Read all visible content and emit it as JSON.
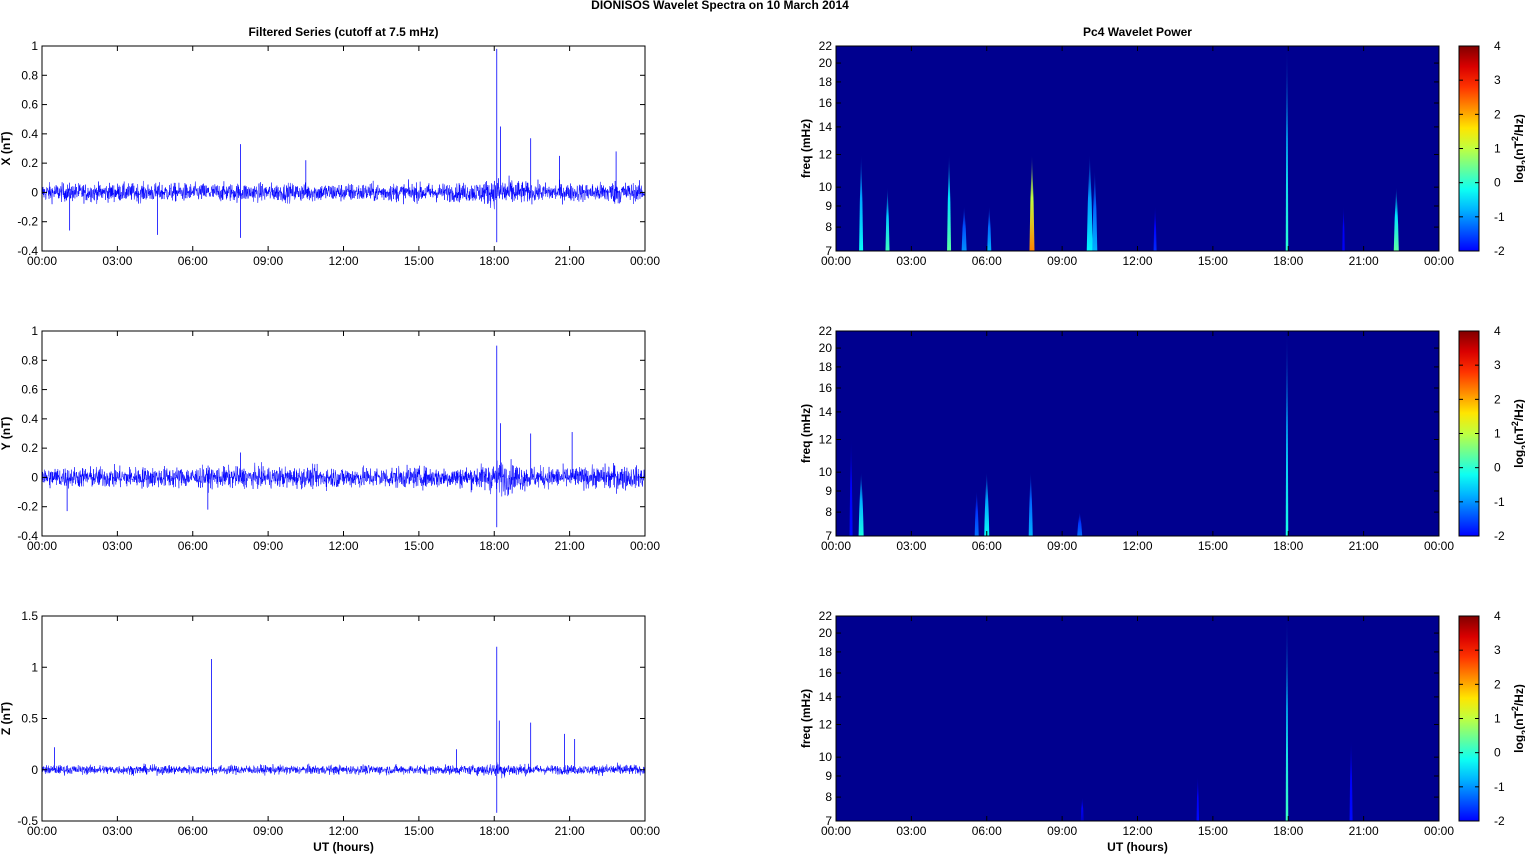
{
  "figure_title": "DIONISOS Wavelet Spectra on 10 March     2014",
  "colors": {
    "trace": "#0000ff",
    "background_power": "#00008f",
    "frame": "#000000"
  },
  "chart_data": [
    {
      "type": "line",
      "panel": "X",
      "title": "Filtered Series (cutoff at 7.5 mHz)",
      "xlabel": "",
      "ylabel": "X (nT)",
      "x_ticks": [
        "00:00",
        "03:00",
        "06:00",
        "09:00",
        "12:00",
        "15:00",
        "18:00",
        "21:00",
        "00:00"
      ],
      "xlim": [
        0,
        24
      ],
      "ylim": [
        -0.4,
        1
      ],
      "y_ticks": [
        -0.4,
        -0.2,
        0,
        0.2,
        0.4,
        0.6,
        0.8,
        1
      ],
      "y_tick_labels": [
        "-0.4",
        "-0.2",
        "0",
        "0.2",
        "0.4",
        "0.6",
        "0.8",
        "1"
      ],
      "noise_amplitude": 0.07,
      "spikes": [
        {
          "t": 18.1,
          "v": 0.98
        },
        {
          "t": 18.25,
          "v": 0.45
        },
        {
          "t": 18.1,
          "v": -0.34
        },
        {
          "t": 7.9,
          "v": 0.33
        },
        {
          "t": 7.9,
          "v": -0.31
        },
        {
          "t": 19.45,
          "v": 0.37
        },
        {
          "t": 20.6,
          "v": 0.25
        },
        {
          "t": 22.85,
          "v": 0.28
        },
        {
          "t": 4.6,
          "v": -0.29
        },
        {
          "t": 10.5,
          "v": 0.22
        },
        {
          "t": 1.1,
          "v": -0.26
        }
      ]
    },
    {
      "type": "line",
      "panel": "Y",
      "title": "",
      "xlabel": "",
      "ylabel": "Y (nT)",
      "x_ticks": [
        "00:00",
        "03:00",
        "06:00",
        "09:00",
        "12:00",
        "15:00",
        "18:00",
        "21:00",
        "00:00"
      ],
      "xlim": [
        0,
        24
      ],
      "ylim": [
        -0.4,
        1
      ],
      "y_ticks": [
        -0.4,
        -0.2,
        0,
        0.2,
        0.4,
        0.6,
        0.8,
        1
      ],
      "y_tick_labels": [
        "-0.4",
        "-0.2",
        "0",
        "0.2",
        "0.4",
        "0.6",
        "0.8",
        "1"
      ],
      "noise_amplitude": 0.08,
      "spikes": [
        {
          "t": 18.1,
          "v": 0.9
        },
        {
          "t": 18.25,
          "v": 0.37
        },
        {
          "t": 18.1,
          "v": -0.34
        },
        {
          "t": 19.45,
          "v": 0.3
        },
        {
          "t": 21.1,
          "v": 0.31
        },
        {
          "t": 1.0,
          "v": -0.23
        },
        {
          "t": 6.6,
          "v": -0.22
        },
        {
          "t": 7.9,
          "v": 0.17
        }
      ]
    },
    {
      "type": "line",
      "panel": "Z",
      "title": "",
      "xlabel": "UT (hours)",
      "ylabel": "Z (nT)",
      "x_ticks": [
        "00:00",
        "03:00",
        "06:00",
        "09:00",
        "12:00",
        "15:00",
        "18:00",
        "21:00",
        "00:00"
      ],
      "xlim": [
        0,
        24
      ],
      "ylim": [
        -0.5,
        1.5
      ],
      "y_ticks": [
        -0.5,
        0,
        0.5,
        1,
        1.5
      ],
      "y_tick_labels": [
        "-0.5",
        "0",
        "0.5",
        "1",
        "1.5"
      ],
      "noise_amplitude": 0.05,
      "spikes": [
        {
          "t": 6.75,
          "v": 1.08
        },
        {
          "t": 18.1,
          "v": 1.2
        },
        {
          "t": 18.2,
          "v": 0.48
        },
        {
          "t": 18.1,
          "v": -0.42
        },
        {
          "t": 19.45,
          "v": 0.46
        },
        {
          "t": 20.8,
          "v": 0.35
        },
        {
          "t": 21.2,
          "v": 0.3
        },
        {
          "t": 16.5,
          "v": 0.2
        },
        {
          "t": 0.5,
          "v": 0.22
        }
      ]
    },
    {
      "type": "heatmap",
      "panel": "X",
      "title": "Pc4 Wavelet Power",
      "xlabel": "",
      "ylabel": "freq (mHz)",
      "x_ticks": [
        "00:00",
        "03:00",
        "06:00",
        "09:00",
        "12:00",
        "15:00",
        "18:00",
        "21:00",
        "00:00"
      ],
      "xlim": [
        0,
        24
      ],
      "ylim": [
        7,
        22
      ],
      "y_ticks": [
        7,
        8,
        9,
        10,
        12,
        14,
        16,
        18,
        20,
        22
      ],
      "colorbar": {
        "ticks": [
          -2,
          -1,
          0,
          1,
          2,
          3,
          4
        ],
        "range": [
          -2,
          4
        ],
        "label_prefix": "log",
        "label_sub": "2",
        "label_mid": "(nT",
        "label_sup": "2",
        "label_end": "/Hz)"
      },
      "features": [
        {
          "t": 1.0,
          "f": 12,
          "w": 0.08,
          "p": 0.3
        },
        {
          "t": 2.05,
          "f": 10,
          "w": 0.08,
          "p": 0.6
        },
        {
          "t": 4.5,
          "f": 12,
          "w": 0.08,
          "p": 0.8
        },
        {
          "t": 5.1,
          "f": 9,
          "w": 0.1,
          "p": -0.4
        },
        {
          "t": 6.1,
          "f": 9,
          "w": 0.08,
          "p": -0.2
        },
        {
          "t": 7.8,
          "f": 12,
          "w": 0.1,
          "p": 2.5
        },
        {
          "t": 10.1,
          "f": 12,
          "w": 0.12,
          "p": 0.2
        },
        {
          "t": 10.3,
          "f": 11,
          "w": 0.1,
          "p": -0.2
        },
        {
          "t": 12.7,
          "f": 9,
          "w": 0.06,
          "p": -1.0
        },
        {
          "t": 17.95,
          "f": 22,
          "w": 0.05,
          "p": 0.5
        },
        {
          "t": 22.3,
          "f": 10,
          "w": 0.1,
          "p": 0.8
        },
        {
          "t": 20.2,
          "f": 9,
          "w": 0.05,
          "p": -1.3
        }
      ]
    },
    {
      "type": "heatmap",
      "panel": "Y",
      "title": "",
      "xlabel": "",
      "ylabel": "freq (mHz)",
      "x_ticks": [
        "00:00",
        "03:00",
        "06:00",
        "09:00",
        "12:00",
        "15:00",
        "18:00",
        "21:00",
        "00:00"
      ],
      "xlim": [
        0,
        24
      ],
      "ylim": [
        7,
        22
      ],
      "y_ticks": [
        7,
        8,
        9,
        10,
        12,
        14,
        16,
        18,
        20,
        22
      ],
      "colorbar": {
        "ticks": [
          -2,
          -1,
          0,
          1,
          2,
          3,
          4
        ],
        "range": [
          -2,
          4
        ],
        "label_prefix": "log",
        "label_sub": "2",
        "label_mid": "(nT",
        "label_sup": "2",
        "label_end": "/Hz)"
      },
      "features": [
        {
          "t": 1.0,
          "f": 10,
          "w": 0.1,
          "p": 0.4
        },
        {
          "t": 0.6,
          "f": 12,
          "w": 0.06,
          "p": -1.2
        },
        {
          "t": 5.6,
          "f": 9,
          "w": 0.08,
          "p": -0.6
        },
        {
          "t": 6.0,
          "f": 10,
          "w": 0.1,
          "p": 0.3
        },
        {
          "t": 7.75,
          "f": 10,
          "w": 0.08,
          "p": -0.2
        },
        {
          "t": 9.7,
          "f": 8,
          "w": 0.1,
          "p": -0.6
        },
        {
          "t": 17.95,
          "f": 22,
          "w": 0.05,
          "p": 0.4
        }
      ]
    },
    {
      "type": "heatmap",
      "panel": "Z",
      "title": "",
      "xlabel": "UT (hours)",
      "ylabel": "freq (mHz)",
      "x_ticks": [
        "00:00",
        "03:00",
        "06:00",
        "09:00",
        "12:00",
        "15:00",
        "18:00",
        "21:00",
        "00:00"
      ],
      "xlim": [
        0,
        24
      ],
      "ylim": [
        7,
        22
      ],
      "y_ticks": [
        7,
        8,
        9,
        10,
        12,
        14,
        16,
        18,
        20,
        22
      ],
      "colorbar": {
        "ticks": [
          -2,
          -1,
          0,
          1,
          2,
          3,
          4
        ],
        "range": [
          -2,
          4
        ],
        "label_prefix": "log",
        "label_sub": "2",
        "label_mid": "(nT",
        "label_sup": "2",
        "label_end": "/Hz)"
      },
      "features": [
        {
          "t": 17.95,
          "f": 22,
          "w": 0.05,
          "p": 0.6
        },
        {
          "t": 14.4,
          "f": 9,
          "w": 0.05,
          "p": -1.2
        },
        {
          "t": 20.5,
          "f": 11,
          "w": 0.06,
          "p": -1.2
        },
        {
          "t": 9.8,
          "f": 8,
          "w": 0.06,
          "p": -1.6
        }
      ]
    }
  ]
}
